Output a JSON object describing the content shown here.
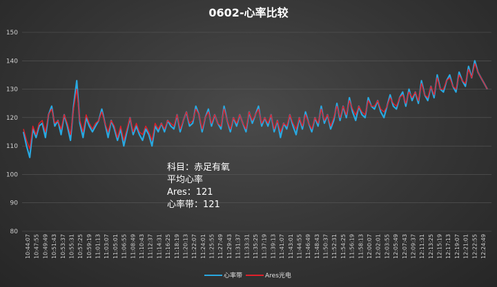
{
  "chart_data": {
    "type": "line",
    "title": "0602-心率比较",
    "xlabel": "",
    "ylabel": "",
    "ylim": [
      80,
      150
    ],
    "yticks": [
      80,
      90,
      100,
      110,
      120,
      130,
      140,
      150
    ],
    "grid": "horizontal",
    "legend": "bottom",
    "x_ticks": [
      "10:44:07",
      "10:47:55",
      "10:49:49",
      "10:51:43",
      "10:53:37",
      "10:55:31",
      "10:57:25",
      "10:59:19",
      "11:01:13",
      "11:03:07",
      "11:05:01",
      "11:06:55",
      "11:08:49",
      "11:10:43",
      "11:12:37",
      "11:14:31",
      "11:16:25",
      "11:18:19",
      "11:20:13",
      "11:22:07",
      "11:24:01",
      "11:25:55",
      "11:27:49",
      "11:29:43",
      "11:31:37",
      "11:33:31",
      "11:35:25",
      "11:37:19",
      "11:39:13",
      "11:41:07",
      "11:43:01",
      "11:44:55",
      "11:46:49",
      "11:48:43",
      "11:50:37",
      "11:52:31",
      "11:54:25",
      "11:56:19",
      "11:58:13",
      "12:00:07",
      "12:02:01",
      "12:03:55",
      "12:05:49",
      "12:07:43",
      "12:09:37",
      "12:11:31",
      "12:13:25",
      "12:15:19",
      "12:17:13",
      "12:19:07",
      "12:21:01",
      "12:22:55",
      "12:24:49"
    ],
    "series": [
      {
        "name": "心率带",
        "color": "#29a8e0",
        "values": [
          115,
          110,
          106,
          116,
          113,
          117,
          118,
          113,
          121,
          124,
          117,
          119,
          114,
          121,
          117,
          112,
          124,
          133,
          118,
          113,
          120,
          117,
          115,
          117,
          119,
          123,
          118,
          113,
          119,
          116,
          112,
          116,
          110,
          115,
          120,
          114,
          117,
          114,
          112,
          116,
          114,
          110,
          117,
          115,
          118,
          115,
          119,
          117,
          116,
          121,
          115,
          119,
          122,
          117,
          118,
          124,
          121,
          115,
          120,
          123,
          117,
          121,
          118,
          116,
          124,
          119,
          115,
          120,
          117,
          121,
          118,
          115,
          122,
          118,
          121,
          124,
          117,
          120,
          117,
          121,
          115,
          119,
          113,
          118,
          116,
          121,
          117,
          114,
          120,
          116,
          122,
          118,
          115,
          120,
          117,
          124,
          118,
          121,
          116,
          119,
          125,
          119,
          124,
          120,
          127,
          122,
          119,
          124,
          121,
          120,
          127,
          124,
          123,
          126,
          122,
          120,
          124,
          128,
          124,
          123,
          127,
          129,
          124,
          130,
          126,
          129,
          125,
          133,
          128,
          126,
          131,
          127,
          135,
          130,
          129,
          133,
          135,
          131,
          129,
          136,
          133,
          131,
          138,
          134,
          140,
          136,
          134,
          132,
          130
        ]
      },
      {
        "name": "Ares光电",
        "color": "#e0202a",
        "values": [
          116,
          112,
          109,
          117,
          114,
          118,
          119,
          115,
          121,
          123,
          118,
          119,
          116,
          121,
          118,
          114,
          123,
          130,
          119,
          115,
          121,
          118,
          116,
          118,
          119,
          122,
          118,
          115,
          119,
          117,
          113,
          117,
          112,
          116,
          120,
          115,
          118,
          115,
          114,
          117,
          115,
          112,
          118,
          116,
          118,
          116,
          119,
          118,
          117,
          121,
          116,
          119,
          122,
          118,
          119,
          123,
          121,
          116,
          120,
          122,
          118,
          121,
          118,
          117,
          123,
          119,
          116,
          120,
          118,
          121,
          118,
          116,
          122,
          119,
          121,
          123,
          118,
          120,
          118,
          121,
          116,
          119,
          115,
          118,
          117,
          121,
          118,
          116,
          120,
          117,
          121,
          118,
          116,
          120,
          118,
          123,
          119,
          121,
          117,
          120,
          124,
          120,
          124,
          121,
          126,
          123,
          121,
          124,
          122,
          121,
          126,
          124,
          124,
          126,
          123,
          122,
          124,
          127,
          125,
          124,
          127,
          128,
          125,
          129,
          127,
          129,
          126,
          132,
          128,
          127,
          131,
          128,
          134,
          130,
          130,
          133,
          134,
          131,
          130,
          135,
          133,
          132,
          137,
          134,
          139,
          136,
          134,
          132,
          130
        ]
      }
    ],
    "annotations": [
      "科目：赤足有氧",
      "平均心率",
      "Ares：121",
      "心率带：121"
    ]
  }
}
